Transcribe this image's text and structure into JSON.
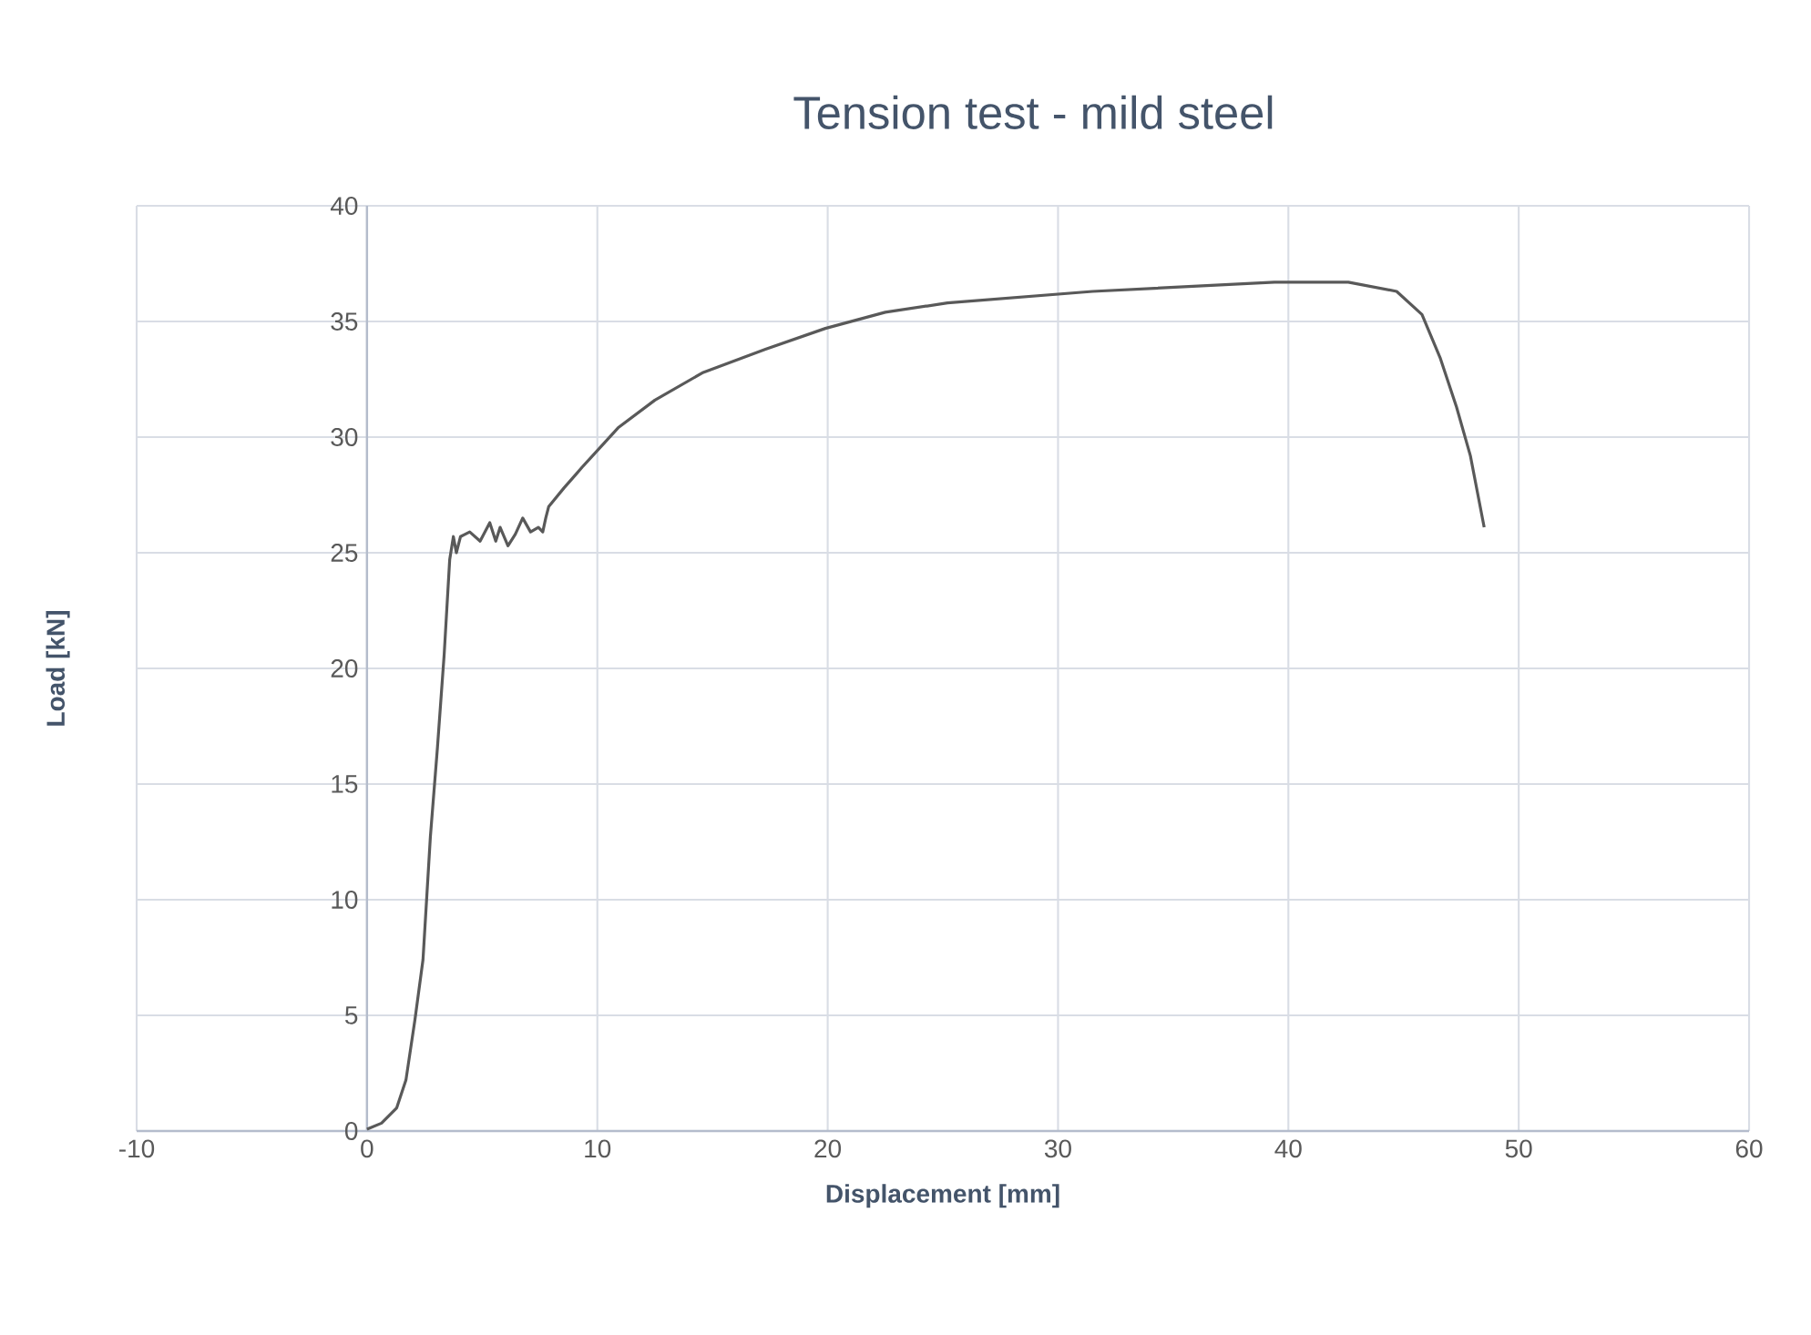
{
  "chart_data": {
    "type": "line",
    "title": "Tension test - mild steel",
    "xlabel": "Displacement [mm]",
    "ylabel": "Load [kN]",
    "xlim": [
      -10,
      60
    ],
    "xticks": [
      -10,
      0,
      10,
      20,
      30,
      40,
      50,
      60
    ],
    "ylim": [
      0,
      40
    ],
    "yticks": [
      0,
      5,
      10,
      15,
      20,
      25,
      30,
      35,
      40
    ],
    "grid": true,
    "line_style": "solid",
    "marker": "none",
    "series": [
      {
        "color": "#595959",
        "x": [
          0,
          0.63,
          1.29,
          1.69,
          2.08,
          2.43,
          2.75,
          3.06,
          3.35,
          3.59,
          3.75,
          3.88,
          4.06,
          4.46,
          4.91,
          5.33,
          5.59,
          5.78,
          6.12,
          6.44,
          6.76,
          7.1,
          7.44,
          7.63,
          7.76,
          7.89,
          8.55,
          9.08,
          9.34,
          10.9,
          12.5,
          14.6,
          17.3,
          19.9,
          22.5,
          25.2,
          31.5,
          39.4,
          42.6,
          44.7,
          45.8,
          46.6,
          47.3,
          47.9,
          48.5
        ],
        "values": [
          0.08,
          0.34,
          1.0,
          2.2,
          4.8,
          7.4,
          12.7,
          16.6,
          20.6,
          24.7,
          25.7,
          25.0,
          25.7,
          25.9,
          25.5,
          26.3,
          25.5,
          26.1,
          25.3,
          25.8,
          26.5,
          25.9,
          26.1,
          25.9,
          26.5,
          27.0,
          27.8,
          28.4,
          28.7,
          30.4,
          31.6,
          32.8,
          33.8,
          34.7,
          35.4,
          35.8,
          36.3,
          36.7,
          36.7,
          36.3,
          35.3,
          33.4,
          31.3,
          29.2,
          26.1
        ]
      }
    ]
  }
}
